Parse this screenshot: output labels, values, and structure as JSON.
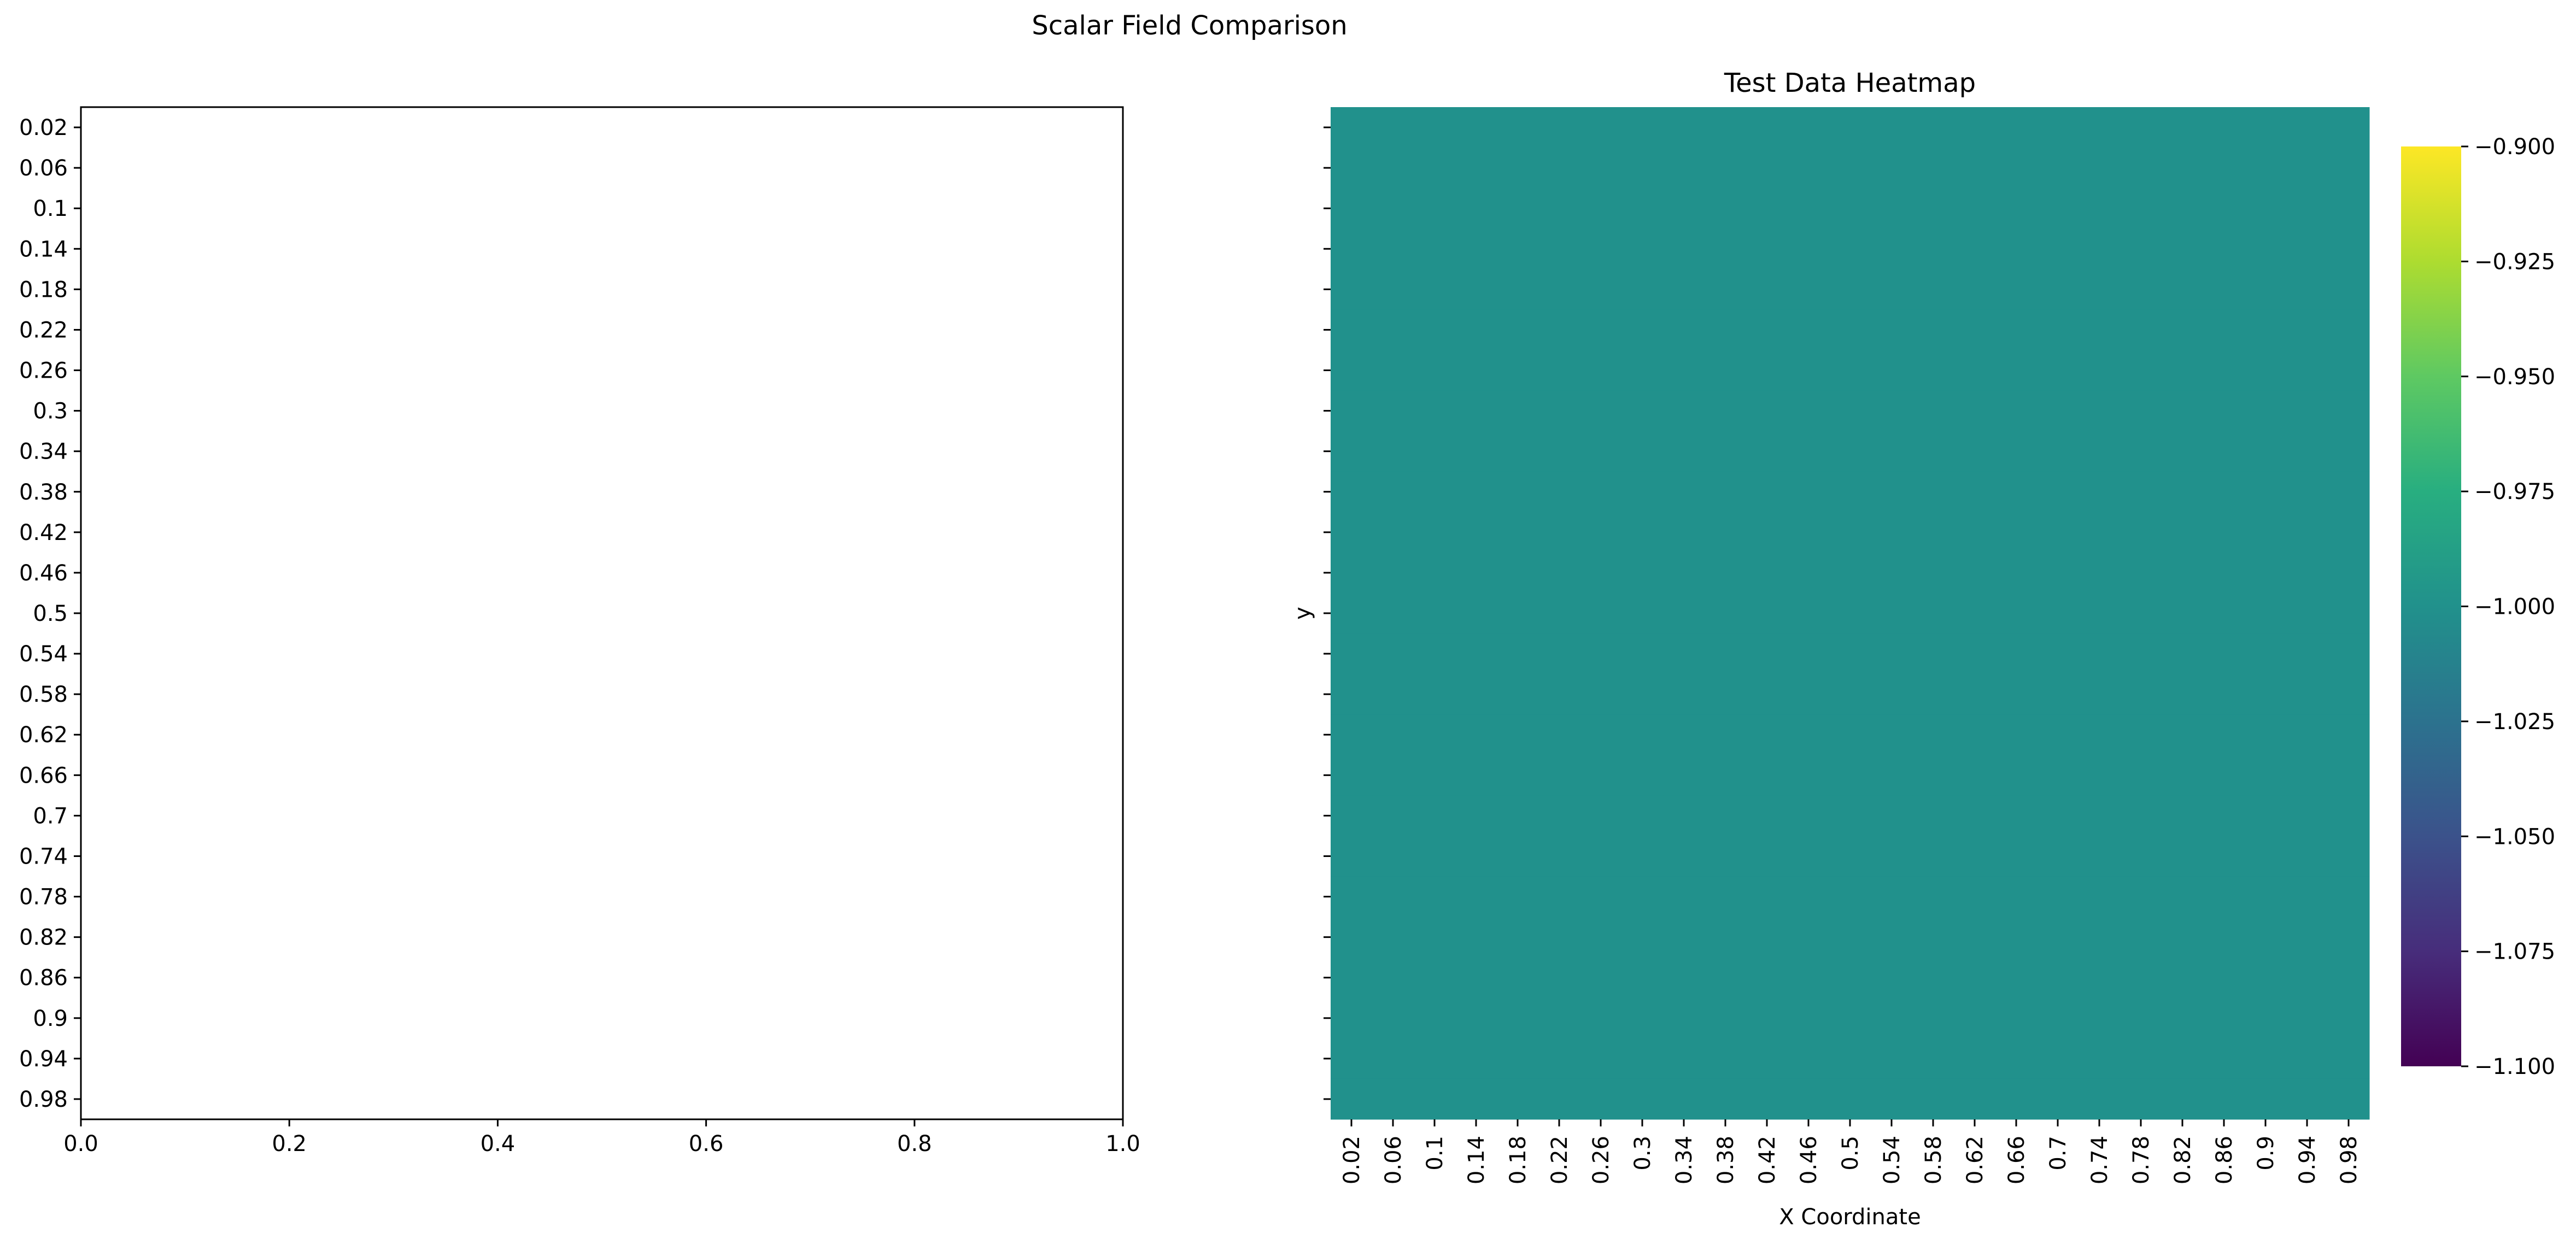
{
  "figure": {
    "suptitle": "Scalar Field Comparison"
  },
  "chart_data": [
    {
      "type": "scatter",
      "title": "",
      "xlabel": "",
      "ylabel": "",
      "xlim": [
        0.0,
        1.0
      ],
      "x_ticks": [
        "0.0",
        "0.2",
        "0.4",
        "0.6",
        "0.8",
        "1.0"
      ],
      "y_ticks": [
        "0.02",
        "0.06",
        "0.1",
        "0.14",
        "0.18",
        "0.22",
        "0.26",
        "0.3",
        "0.34",
        "0.38",
        "0.42",
        "0.46",
        "0.5",
        "0.54",
        "0.58",
        "0.62",
        "0.66",
        "0.7",
        "0.74",
        "0.78",
        "0.82",
        "0.86",
        "0.9",
        "0.94",
        "0.98"
      ],
      "series": [],
      "grid": false
    },
    {
      "type": "heatmap",
      "title": "Test Data Heatmap",
      "xlabel": "X Coordinate",
      "ylabel": "y",
      "x_categories": [
        "0.02",
        "0.06",
        "0.1",
        "0.14",
        "0.18",
        "0.22",
        "0.26",
        "0.3",
        "0.34",
        "0.38",
        "0.42",
        "0.46",
        "0.5",
        "0.54",
        "0.58",
        "0.62",
        "0.66",
        "0.7",
        "0.74",
        "0.78",
        "0.82",
        "0.86",
        "0.9",
        "0.94",
        "0.98"
      ],
      "y_categories": [
        "0.02",
        "0.06",
        "0.1",
        "0.14",
        "0.18",
        "0.22",
        "0.26",
        "0.3",
        "0.34",
        "0.38",
        "0.42",
        "0.46",
        "0.5",
        "0.54",
        "0.58",
        "0.62",
        "0.66",
        "0.7",
        "0.74",
        "0.78",
        "0.82",
        "0.86",
        "0.9",
        "0.94",
        "0.98"
      ],
      "y_tick_labels_visible": false,
      "uniform_value": -1.0,
      "cell_color": "#21918c",
      "colormap": "viridis",
      "colorbar": {
        "vmin": -1.1,
        "vmax": -0.9,
        "ticks": [
          "−0.900",
          "−0.925",
          "−0.950",
          "−0.975",
          "−1.000",
          "−1.025",
          "−1.050",
          "−1.075",
          "−1.100"
        ]
      },
      "grid": false
    }
  ]
}
